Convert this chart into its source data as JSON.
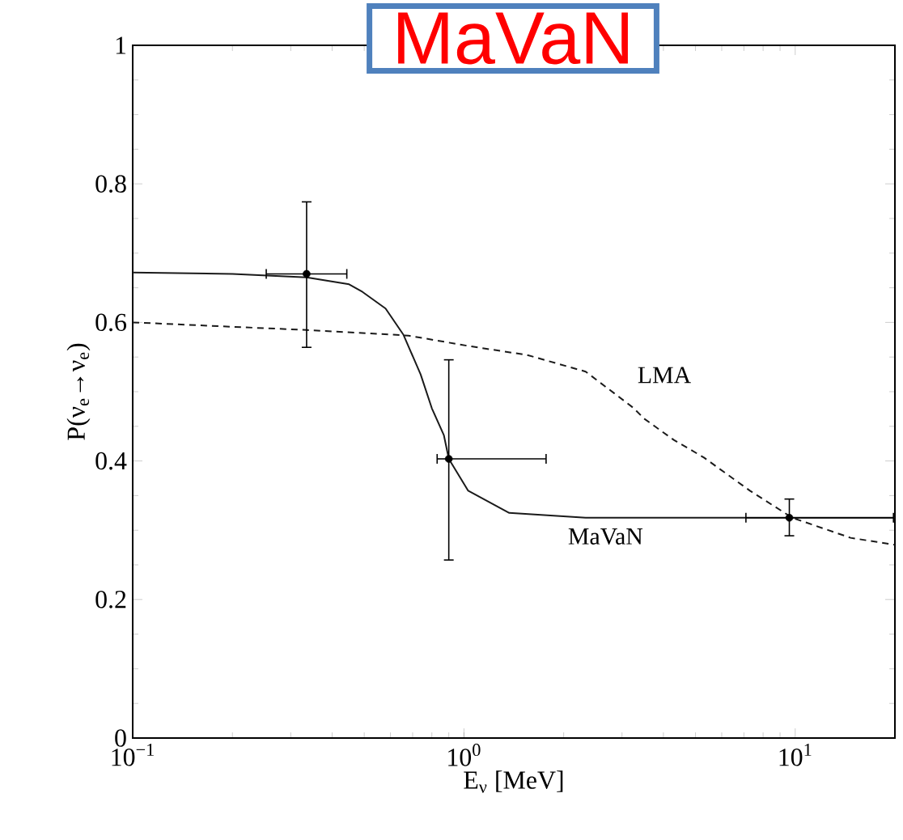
{
  "chart_data": {
    "type": "line",
    "title": "MaVaN",
    "xlabel": "E$_{ν}$ [MeV]",
    "ylabel": "P(ν$_{e}$→ν$_{e}$)",
    "log": "x",
    "xlim": [
      0.1,
      20
    ],
    "ylim": [
      0,
      1
    ],
    "xticks": [
      {
        "value": 0.1,
        "label": "10$^{−1}$"
      },
      {
        "value": 1,
        "label": "10$^{0}$"
      },
      {
        "value": 10,
        "label": "10$^{1}$"
      }
    ],
    "yticks": [
      0,
      0.2,
      0.4,
      0.6,
      0.8,
      1
    ],
    "grid": false,
    "series": [
      {
        "name": "MaVaN",
        "line_style": "solid",
        "marker": "none",
        "color": "#1a1a1a",
        "x": [
          0.1,
          0.2,
          0.335,
          0.45,
          0.494,
          0.58,
          0.657,
          0.74,
          0.8,
          0.87,
          0.9,
          1.03,
          1.37,
          2.33,
          5,
          10,
          20
        ],
        "values": [
          0.672,
          0.67,
          0.665,
          0.655,
          0.644,
          0.62,
          0.582,
          0.525,
          0.476,
          0.437,
          0.403,
          0.357,
          0.325,
          0.318,
          0.318,
          0.318,
          0.318
        ]
      },
      {
        "name": "LMA",
        "line_style": "dashed",
        "marker": "none",
        "color": "#1a1a1a",
        "x": [
          0.1,
          0.335,
          0.68,
          1.03,
          1.55,
          2.33,
          3.24,
          3.5,
          4.31,
          5.3,
          7.3,
          9.8,
          14.7,
          20
        ],
        "values": [
          0.6,
          0.589,
          0.581,
          0.566,
          0.553,
          0.529,
          0.477,
          0.461,
          0.43,
          0.405,
          0.357,
          0.318,
          0.289,
          0.279
        ]
      },
      {
        "type": "scatter",
        "marker": "circle",
        "color": "#000000",
        "x": [
          0.335,
          0.9,
          9.6
        ],
        "values": [
          0.67,
          0.403,
          0.318
        ],
        "errors": [
          [
            0.564,
            0.774
          ],
          [
            0.257,
            0.546
          ],
          [
            0.292,
            0.345
          ]
        ],
        "xerrors": [
          [
            0.253,
            0.443
          ],
          [
            0.83,
            1.77
          ],
          [
            7.1,
            19.8
          ]
        ]
      }
    ]
  }
}
